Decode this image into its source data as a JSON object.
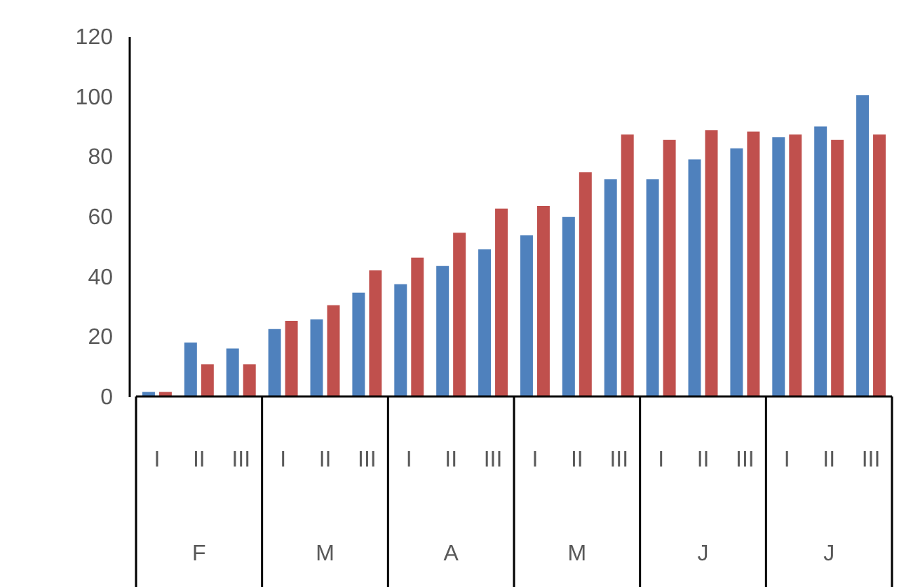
{
  "chart_data": {
    "type": "bar",
    "categories": [
      "I",
      "II",
      "III",
      "I",
      "II",
      "III",
      "I",
      "II",
      "III",
      "I",
      "II",
      "III",
      "I",
      "II",
      "III",
      "I",
      "II",
      "III"
    ],
    "series": [
      {
        "color": "#4f81bd",
        "values": [
          1.5,
          18,
          16,
          22.5,
          25.7,
          34.6,
          37.4,
          43.5,
          49,
          53.7,
          59.8,
          72.4,
          72.4,
          79,
          82.7,
          86.4,
          90,
          100.4
        ]
      },
      {
        "color": "#c0504d",
        "values": [
          1.5,
          10.7,
          10.7,
          25.2,
          30.4,
          42,
          46.3,
          54.6,
          62.6,
          63.5,
          74.7,
          87.3,
          85.5,
          88.7,
          88.3,
          87.3,
          85.5,
          87.3
        ]
      }
    ],
    "annotations": [
      "F",
      "M",
      "A",
      "M",
      "J",
      "J"
    ],
    "ylim": [
      0,
      120
    ],
    "yticks": [
      0,
      20,
      40,
      60,
      80,
      100,
      120
    ],
    "grid": false
  }
}
